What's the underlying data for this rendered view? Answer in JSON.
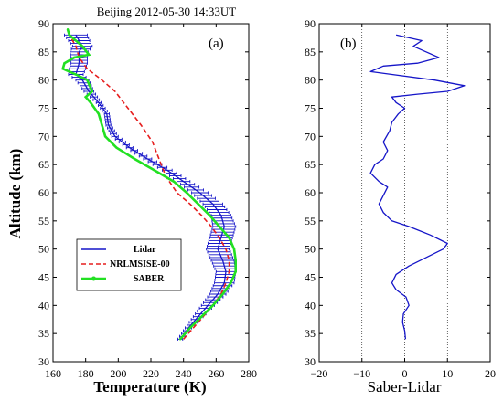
{
  "title": "Beijing    2012-05-30  14:33UT",
  "colors": {
    "lidar": "#1515c8",
    "nrlmsise": "#e61e1e",
    "saber": "#22e022",
    "axis": "#000000"
  },
  "chart_data": [
    {
      "type": "line",
      "panel_label": "(a)",
      "xlabel": "Temperature  (K)",
      "ylabel": "Altitude  (km)",
      "xlim": [
        160,
        280
      ],
      "ylim": [
        30,
        90
      ],
      "xticks": [
        "160",
        "180",
        "200",
        "220",
        "240",
        "260",
        "280"
      ],
      "yticks": [
        "30",
        "35",
        "40",
        "45",
        "50",
        "55",
        "60",
        "65",
        "70",
        "75",
        "80",
        "85",
        "90"
      ],
      "legend_position": "lower-left",
      "series": [
        {
          "name": "Lidar",
          "marker": "error bars",
          "points": [
            [
              238,
              34
            ],
            [
              243,
              36
            ],
            [
              249,
              38
            ],
            [
              255,
              40
            ],
            [
              261,
              42
            ],
            [
              265,
              44
            ],
            [
              266,
              46
            ],
            [
              264,
              48
            ],
            [
              261,
              50
            ],
            [
              263,
              52
            ],
            [
              265,
              54
            ],
            [
              263,
              56
            ],
            [
              258,
              58
            ],
            [
              250,
              60
            ],
            [
              240,
              62
            ],
            [
              230,
              64
            ],
            [
              218,
              66
            ],
            [
              207,
              68
            ],
            [
              198,
              70
            ],
            [
              194,
              72
            ],
            [
              193,
              74
            ],
            [
              188,
              76
            ],
            [
              182,
              78
            ],
            [
              178,
              80
            ],
            [
              174,
              81
            ],
            [
              176,
              83
            ],
            [
              176,
              85
            ],
            [
              178,
              86
            ],
            [
              174,
              88
            ]
          ],
          "errors": [
            [
              34,
              1.5
            ],
            [
              36,
              2
            ],
            [
              38,
              3
            ],
            [
              40,
              4
            ],
            [
              42,
              5
            ],
            [
              44,
              6
            ],
            [
              46,
              6
            ],
            [
              48,
              7
            ],
            [
              50,
              7
            ],
            [
              52,
              7
            ],
            [
              54,
              7
            ],
            [
              56,
              6
            ],
            [
              58,
              6
            ],
            [
              60,
              5
            ],
            [
              62,
              4
            ],
            [
              64,
              3
            ],
            [
              66,
              2.5
            ],
            [
              68,
              2
            ],
            [
              70,
              2
            ],
            [
              72,
              1.5
            ],
            [
              74,
              1.5
            ],
            [
              76,
              1.5
            ],
            [
              78,
              3
            ],
            [
              80,
              4
            ],
            [
              82,
              5
            ],
            [
              84,
              5
            ],
            [
              86,
              6
            ],
            [
              88,
              7
            ]
          ]
        },
        {
          "name": "NRLMSISE-00",
          "points": [
            [
              240,
              34
            ],
            [
              246,
              36
            ],
            [
              252,
              38
            ],
            [
              258,
              40
            ],
            [
              263,
              42
            ],
            [
              266,
              44
            ],
            [
              268,
              46
            ],
            [
              268,
              48
            ],
            [
              266,
              50
            ],
            [
              262,
              52
            ],
            [
              257,
              54
            ],
            [
              251,
              56
            ],
            [
              244,
              58
            ],
            [
              236,
              60
            ],
            [
              229,
              63
            ],
            [
              225,
              66
            ],
            [
              221,
              69
            ],
            [
              214,
              72
            ],
            [
              206,
              75
            ],
            [
              198,
              78
            ],
            [
              190,
              80
            ],
            [
              181,
              82
            ],
            [
              176,
              84
            ],
            [
              174,
              86
            ],
            [
              170,
              88
            ]
          ]
        },
        {
          "name": "SABER",
          "points": [
            [
              238,
              34
            ],
            [
              244,
              36
            ],
            [
              251,
              38
            ],
            [
              258,
              40
            ],
            [
              264,
              42
            ],
            [
              269,
              44
            ],
            [
              272,
              46
            ],
            [
              272,
              48
            ],
            [
              271,
              50
            ],
            [
              268,
              52
            ],
            [
              262,
              54
            ],
            [
              256,
              56
            ],
            [
              249,
              58
            ],
            [
              242,
              60
            ],
            [
              234,
              62
            ],
            [
              222,
              64
            ],
            [
              210,
              66
            ],
            [
              199,
              68
            ],
            [
              192,
              70
            ],
            [
              190,
              72
            ],
            [
              188,
              74
            ],
            [
              183,
              76
            ],
            [
              180,
              77
            ],
            [
              184,
              78
            ],
            [
              181,
              80
            ],
            [
              174,
              81
            ],
            [
              166,
              82
            ],
            [
              167,
              83
            ],
            [
              173,
              84
            ],
            [
              182,
              84.5
            ],
            [
              178,
              86
            ],
            [
              170,
              88
            ],
            [
              169,
              89
            ]
          ]
        }
      ]
    },
    {
      "type": "line",
      "panel_label": "(b)",
      "xlabel": "Saber-Lidar",
      "ylabel": "",
      "xlim": [
        -20,
        20
      ],
      "ylim": [
        30,
        90
      ],
      "xticks": [
        "−20",
        "−10",
        "0",
        "10",
        "20"
      ],
      "yticks": [
        "30",
        "35",
        "40",
        "45",
        "50",
        "55",
        "60",
        "65",
        "70",
        "75",
        "80",
        "85",
        "90"
      ],
      "series": [
        {
          "name": "",
          "points": [
            [
              0.2,
              34
            ],
            [
              0,
              35.5
            ],
            [
              -0.5,
              37
            ],
            [
              -0.3,
              38.5
            ],
            [
              1,
              40
            ],
            [
              0.3,
              41.5
            ],
            [
              -2,
              42.8
            ],
            [
              -3,
              44
            ],
            [
              -2,
              45.5
            ],
            [
              1,
              47
            ],
            [
              5,
              48.5
            ],
            [
              9,
              50
            ],
            [
              10,
              51
            ],
            [
              6,
              52.5
            ],
            [
              1,
              54
            ],
            [
              -3,
              55
            ],
            [
              -5,
              56.5
            ],
            [
              -6,
              58
            ],
            [
              -5,
              59.5
            ],
            [
              -4,
              61
            ],
            [
              -6,
              62
            ],
            [
              -8,
              63.5
            ],
            [
              -7,
              65
            ],
            [
              -5,
              66
            ],
            [
              -4,
              67.5
            ],
            [
              -5,
              69
            ],
            [
              -3.5,
              71
            ],
            [
              -3,
              72.5
            ],
            [
              -1.5,
              74
            ],
            [
              0,
              75
            ],
            [
              -2,
              76
            ],
            [
              -3,
              77
            ],
            [
              3,
              77.5
            ],
            [
              10,
              78
            ],
            [
              14,
              79
            ],
            [
              7,
              80
            ],
            [
              -3,
              81
            ],
            [
              -8,
              81.5
            ],
            [
              -5,
              82.5
            ],
            [
              3,
              83
            ],
            [
              8,
              84
            ],
            [
              5,
              85
            ],
            [
              2,
              86
            ],
            [
              4,
              87
            ],
            [
              -2,
              88
            ]
          ]
        }
      ]
    }
  ]
}
